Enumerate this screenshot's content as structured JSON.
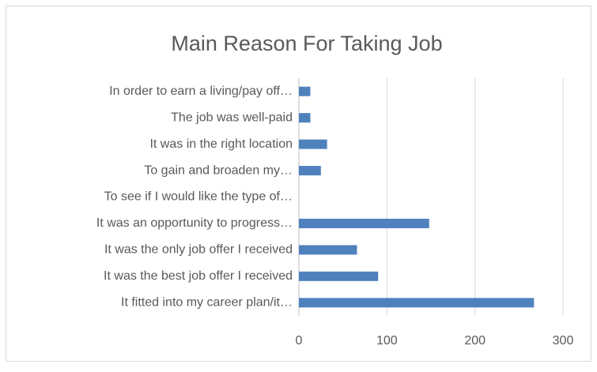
{
  "chart_data": {
    "type": "hbar",
    "title": "Main Reason For Taking Job",
    "categories": [
      "In order to earn a living/pay off…",
      "The job was well-paid",
      "It was in the right location",
      "To gain and broaden my…",
      "To see if I would like the type of…",
      "It was an opportunity to progress…",
      "It was the only job offer I received",
      "It was the best job offer I received",
      "It fitted into my career plan/it…"
    ],
    "values": [
      13,
      13,
      32,
      25,
      0,
      148,
      66,
      90,
      267
    ],
    "color": "#4f81bd",
    "xlim": [
      0,
      300
    ],
    "xticks": [
      0,
      100,
      200,
      300
    ],
    "grid": true
  }
}
